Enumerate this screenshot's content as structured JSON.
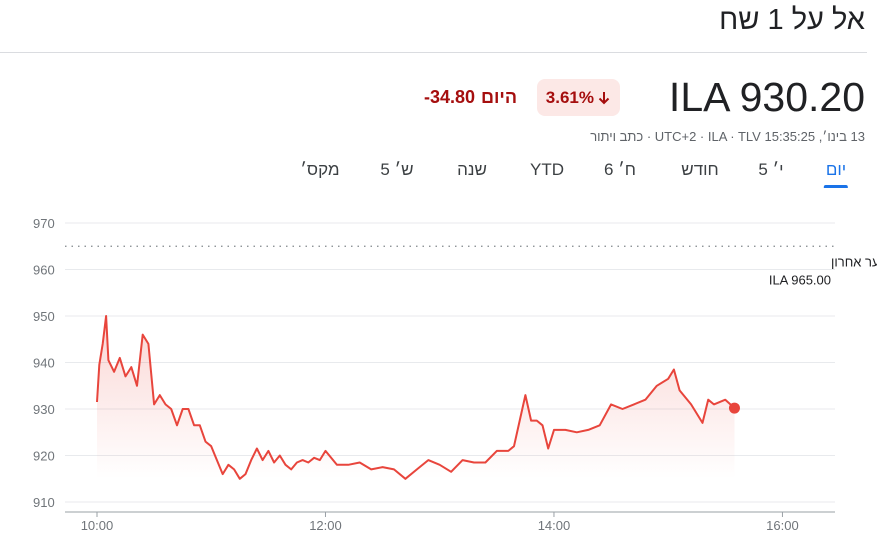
{
  "title": "אל על 1 שח",
  "price": "ILA 930.20",
  "change_pct": "3.61%",
  "change_abs": "-34.80",
  "period": "היום",
  "meta": "13 בינו׳, 15:35:25 UTC+2 · ILA · TLV · כתב ויתור",
  "tabs": [
    "יום",
    "5 י׳",
    "חודש",
    "6 ח׳",
    "YTD",
    "שנה",
    "5 ש׳",
    "מקס׳"
  ],
  "selected_tab": 0,
  "chart_data": {
    "type": "line",
    "color": "#e8453c",
    "x": [
      10.0,
      10.02,
      10.05,
      10.08,
      10.1,
      10.15,
      10.2,
      10.25,
      10.3,
      10.35,
      10.4,
      10.45,
      10.5,
      10.55,
      10.6,
      10.65,
      10.7,
      10.75,
      10.8,
      10.85,
      10.9,
      10.95,
      11.0,
      11.05,
      11.1,
      11.15,
      11.2,
      11.25,
      11.3,
      11.35,
      11.4,
      11.45,
      11.5,
      11.55,
      11.6,
      11.65,
      11.7,
      11.75,
      11.8,
      11.85,
      11.9,
      11.95,
      12.0,
      12.1,
      12.2,
      12.3,
      12.4,
      12.5,
      12.6,
      12.7,
      12.8,
      12.9,
      13.0,
      13.1,
      13.2,
      13.3,
      13.4,
      13.5,
      13.6,
      13.65,
      13.7,
      13.75,
      13.8,
      13.85,
      13.9,
      13.95,
      14.0,
      14.1,
      14.2,
      14.3,
      14.4,
      14.5,
      14.6,
      14.7,
      14.8,
      14.9,
      15.0,
      15.05,
      15.1,
      15.2,
      15.3,
      15.35,
      15.4,
      15.5,
      15.58
    ],
    "values": [
      931.5,
      939.5,
      944,
      950,
      940.5,
      938,
      941,
      937,
      939,
      935,
      946,
      944,
      931,
      933,
      931,
      930,
      926.5,
      930,
      930,
      926.5,
      926.5,
      923,
      922,
      919,
      916,
      918,
      917,
      915,
      916,
      919,
      921.5,
      919,
      921,
      918.5,
      920,
      918,
      917,
      918.5,
      919,
      918.5,
      919.5,
      919,
      921,
      918,
      918,
      918.5,
      917,
      917.5,
      917,
      915,
      917,
      919,
      918,
      916.5,
      919,
      918.5,
      918.5,
      921,
      921,
      922,
      927.5,
      933,
      927.5,
      927.5,
      926.5,
      921.5,
      925.5,
      925.5,
      925,
      925.5,
      926.5,
      931,
      930,
      931,
      932,
      935,
      936.5,
      938.5,
      934,
      931,
      927,
      932,
      931,
      932,
      930.2
    ],
    "xlim": [
      9.72,
      16.46
    ],
    "xticks": [
      {
        "value": 10,
        "label": "10:00"
      },
      {
        "value": 12,
        "label": "12:00"
      },
      {
        "value": 14,
        "label": "14:00"
      },
      {
        "value": 16,
        "label": "16:00"
      }
    ],
    "ylim": [
      910,
      970
    ],
    "yticks": [
      910,
      920,
      930,
      940,
      950,
      960,
      970
    ],
    "grid": true,
    "reference_line": {
      "name": "שער אחרון",
      "value": 965,
      "label": "ILA 965.00"
    }
  }
}
